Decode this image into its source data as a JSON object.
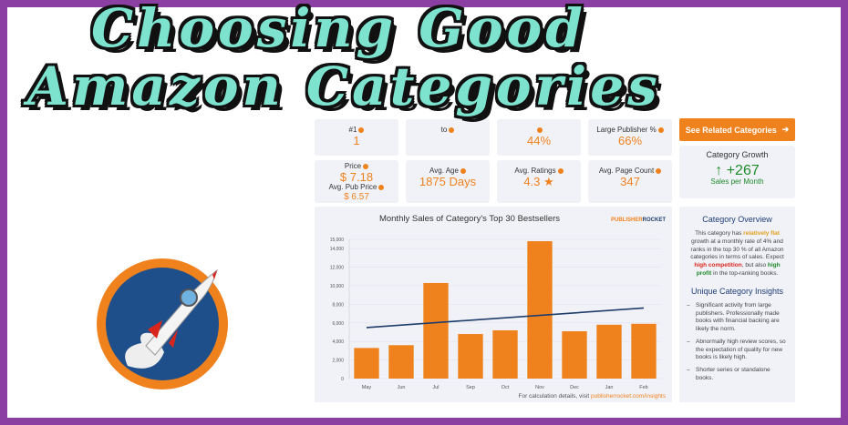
{
  "overlay_title": {
    "line1": "Choosing Good",
    "line2": "Amazon Categories"
  },
  "stats": [
    {
      "label": "#1",
      "value": "1"
    },
    {
      "label": "to",
      "value": ""
    },
    {
      "label": "",
      "value": "44%"
    },
    {
      "label": "Large Publisher %",
      "value": "66%"
    },
    {
      "label": "Price",
      "value": "$ 7.18",
      "label2": "Avg. Pub Price",
      "value2": "$ 6.57"
    },
    {
      "label": "Avg. Age",
      "value": "1875 Days"
    },
    {
      "label": "Avg. Ratings",
      "value": "4.3 ★"
    },
    {
      "label": "Avg. Page Count",
      "value": "347"
    }
  ],
  "related_button": "See Related Categories",
  "growth": {
    "title": "Category Growth",
    "value": "+267",
    "unit": "Sales per Month",
    "color": "#1e8a2a"
  },
  "overview": {
    "title": "Category Overview",
    "t1": "This category has ",
    "h1": "relatively flat",
    "t2": " growth at a monthly rate of 4% and ranks in the top 30 % of all Amazon categories in terms of sales. Expect ",
    "h2": "high competition",
    "t3": ", but also ",
    "h3": "high profit",
    "t4": " in the top-ranking books.",
    "insights_title": "Unique Category Insights",
    "insights": [
      "Significant activity from large publishers. Professionally made books with financial backing are likely the norm.",
      "Abnormally high review scores, so the expectation of quality for new books is likely high.",
      "Shorter series or standalone books."
    ]
  },
  "chart_footer": {
    "text": "For calculation details, visit ",
    "link": "publisherrocket.com/insights"
  },
  "brand": {
    "a": "PUBLISHER",
    "b": "ROCKET"
  },
  "chart_data": {
    "type": "bar",
    "title": "Monthly Sales of Category's Top 30 Bestsellers",
    "categories": [
      "May",
      "Jun",
      "Jul",
      "Sep",
      "Oct",
      "Nov",
      "Dec",
      "Jan",
      "Feb"
    ],
    "values": [
      3300,
      3600,
      10300,
      4800,
      5200,
      14800,
      5100,
      5800,
      5900
    ],
    "trendline": {
      "start": 5500,
      "end": 7600,
      "color": "#1f3d6b"
    },
    "ylim": [
      0,
      15000
    ],
    "yticks": [
      "0",
      "2,000",
      "4,000",
      "6,000",
      "8,000",
      "10,000",
      "12,000",
      "14,000",
      "15,000"
    ],
    "ytick_values": [
      0,
      2000,
      4000,
      6000,
      8000,
      10000,
      12000,
      14000,
      15000
    ],
    "bar_color": "#f0821e",
    "grid": true
  }
}
